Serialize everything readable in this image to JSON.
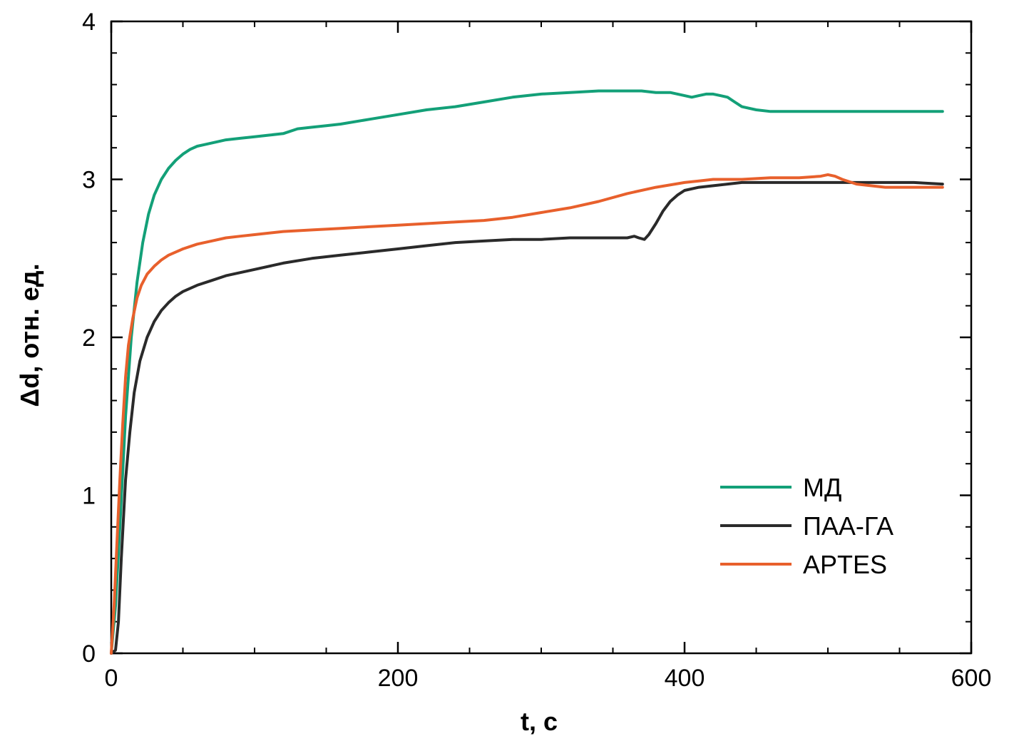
{
  "chart_data": {
    "type": "line",
    "title": "",
    "xlabel": "t, с",
    "ylabel": "Δd, отн. ед.",
    "xlim": [
      0,
      600
    ],
    "ylim": [
      0,
      4
    ],
    "xticks": [
      0,
      200,
      400,
      600
    ],
    "yticks": [
      0,
      1,
      2,
      3,
      4
    ],
    "xtick_labels": [
      "0",
      "200",
      "400",
      "600"
    ],
    "ytick_labels": [
      "0",
      "1",
      "2",
      "3",
      "4"
    ],
    "x_minor_step": 50,
    "y_minor_step": 0.2,
    "grid": false,
    "legend_position": "bottom-right",
    "series": [
      {
        "name": "МД",
        "color": "#13a078",
        "x": [
          0,
          3,
          6,
          10,
          14,
          18,
          22,
          26,
          30,
          35,
          40,
          45,
          50,
          55,
          60,
          65,
          70,
          75,
          80,
          90,
          100,
          110,
          120,
          130,
          140,
          150,
          160,
          180,
          200,
          220,
          240,
          260,
          280,
          300,
          320,
          340,
          350,
          360,
          370,
          380,
          390,
          400,
          405,
          410,
          415,
          420,
          425,
          430,
          435,
          440,
          450,
          460,
          470,
          480,
          490,
          500,
          520,
          540,
          560,
          580
        ],
        "y": [
          0,
          0.3,
          0.8,
          1.5,
          2.0,
          2.35,
          2.6,
          2.78,
          2.9,
          3.0,
          3.07,
          3.12,
          3.16,
          3.19,
          3.21,
          3.22,
          3.23,
          3.24,
          3.25,
          3.26,
          3.27,
          3.28,
          3.29,
          3.32,
          3.33,
          3.34,
          3.35,
          3.38,
          3.41,
          3.44,
          3.46,
          3.49,
          3.52,
          3.54,
          3.55,
          3.56,
          3.56,
          3.56,
          3.56,
          3.55,
          3.55,
          3.53,
          3.52,
          3.53,
          3.54,
          3.54,
          3.53,
          3.52,
          3.49,
          3.46,
          3.44,
          3.43,
          3.43,
          3.43,
          3.43,
          3.43,
          3.43,
          3.43,
          3.43,
          3.43
        ]
      },
      {
        "name": "ПАА-ГА",
        "color": "#2a2a2a",
        "x": [
          0,
          3,
          5,
          7,
          10,
          13,
          16,
          20,
          25,
          30,
          35,
          40,
          45,
          50,
          60,
          70,
          80,
          90,
          100,
          120,
          140,
          160,
          180,
          200,
          220,
          240,
          260,
          280,
          300,
          320,
          340,
          360,
          365,
          368,
          372,
          375,
          380,
          385,
          390,
          395,
          400,
          410,
          420,
          430,
          440,
          460,
          480,
          500,
          520,
          540,
          560,
          580
        ],
        "y": [
          0,
          0.02,
          0.2,
          0.6,
          1.1,
          1.4,
          1.65,
          1.85,
          2.0,
          2.1,
          2.17,
          2.22,
          2.26,
          2.29,
          2.33,
          2.36,
          2.39,
          2.41,
          2.43,
          2.47,
          2.5,
          2.52,
          2.54,
          2.56,
          2.58,
          2.6,
          2.61,
          2.62,
          2.62,
          2.63,
          2.63,
          2.63,
          2.64,
          2.63,
          2.62,
          2.65,
          2.72,
          2.8,
          2.86,
          2.9,
          2.93,
          2.95,
          2.96,
          2.97,
          2.98,
          2.98,
          2.98,
          2.98,
          2.98,
          2.98,
          2.98,
          2.97
        ]
      },
      {
        "name": "APTES",
        "color": "#e8602c",
        "x": [
          0,
          2,
          4,
          6,
          8,
          10,
          12,
          15,
          18,
          21,
          25,
          30,
          35,
          40,
          45,
          50,
          60,
          70,
          80,
          90,
          100,
          120,
          140,
          160,
          180,
          200,
          220,
          240,
          260,
          280,
          300,
          320,
          340,
          360,
          380,
          400,
          410,
          420,
          440,
          460,
          480,
          495,
          500,
          505,
          510,
          520,
          540,
          560,
          580
        ],
        "y": [
          0,
          0.3,
          0.7,
          1.1,
          1.45,
          1.75,
          1.95,
          2.12,
          2.25,
          2.33,
          2.4,
          2.45,
          2.49,
          2.52,
          2.54,
          2.56,
          2.59,
          2.61,
          2.63,
          2.64,
          2.65,
          2.67,
          2.68,
          2.69,
          2.7,
          2.71,
          2.72,
          2.73,
          2.74,
          2.76,
          2.79,
          2.82,
          2.86,
          2.91,
          2.95,
          2.98,
          2.99,
          3.0,
          3.0,
          3.01,
          3.01,
          3.02,
          3.03,
          3.02,
          3.0,
          2.97,
          2.95,
          2.95,
          2.95
        ]
      }
    ]
  }
}
